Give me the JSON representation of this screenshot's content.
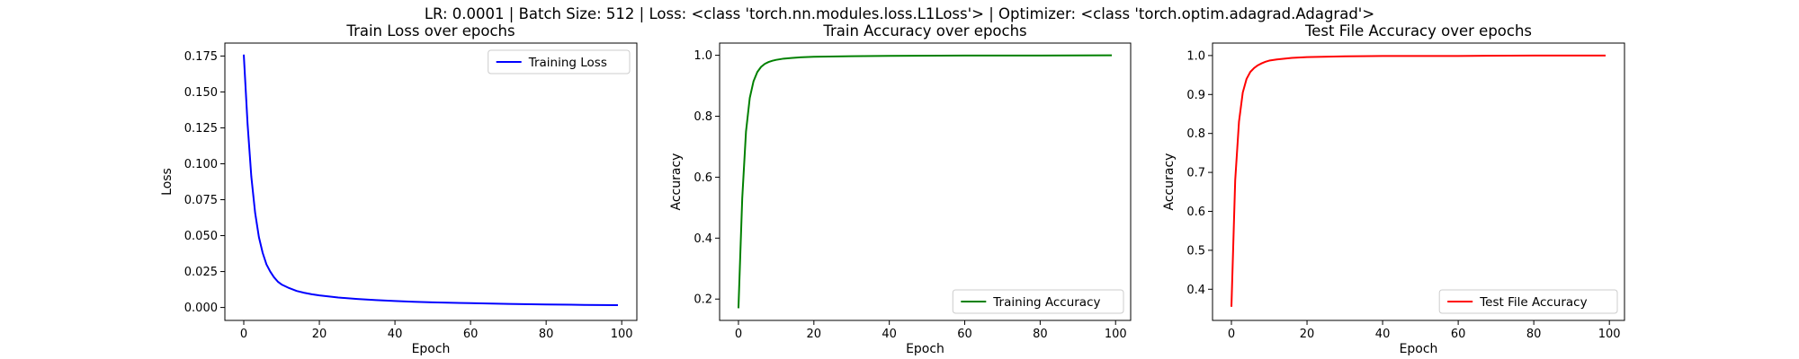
{
  "figure": {
    "suptitle": "LR: 0.0001 | Batch Size: 512 | Loss: <class 'torch.nn.modules.loss.L1Loss'> | Optimizer: <class 'torch.optim.adagrad.Adagrad'>"
  },
  "chart_data": [
    {
      "type": "line",
      "title": "Train Loss over epochs",
      "xlabel": "Epoch",
      "ylabel": "Loss",
      "xlim": [
        -5,
        104
      ],
      "ylim": [
        -0.009,
        0.184
      ],
      "xticks": [
        0,
        20,
        40,
        60,
        80,
        100
      ],
      "yticks": [
        0.0,
        0.025,
        0.05,
        0.075,
        0.1,
        0.125,
        0.15,
        0.175
      ],
      "ytick_labels": [
        "0.000",
        "0.025",
        "0.050",
        "0.075",
        "0.100",
        "0.125",
        "0.150",
        "0.175"
      ],
      "legend_position": "upper right",
      "series": [
        {
          "name": "Training Loss",
          "color": "#0000ff",
          "x": [
            0,
            1,
            2,
            3,
            4,
            5,
            6,
            7,
            8,
            9,
            10,
            12,
            14,
            16,
            18,
            20,
            25,
            30,
            35,
            40,
            45,
            50,
            60,
            70,
            80,
            90,
            99
          ],
          "y": [
            0.176,
            0.128,
            0.091,
            0.066,
            0.049,
            0.038,
            0.03,
            0.025,
            0.021,
            0.018,
            0.016,
            0.0135,
            0.0115,
            0.0102,
            0.0092,
            0.0084,
            0.0069,
            0.0059,
            0.0051,
            0.0045,
            0.004,
            0.0036,
            0.003,
            0.0025,
            0.0021,
            0.0018,
            0.0016
          ]
        }
      ]
    },
    {
      "type": "line",
      "title": "Train Accuracy over epochs",
      "xlabel": "Epoch",
      "ylabel": "Accuracy",
      "xlim": [
        -5,
        104
      ],
      "ylim": [
        0.13,
        1.04
      ],
      "xticks": [
        0,
        20,
        40,
        60,
        80,
        100
      ],
      "yticks": [
        0.2,
        0.4,
        0.6,
        0.8,
        1.0
      ],
      "ytick_labels": [
        "0.2",
        "0.4",
        "0.6",
        "0.8",
        "1.0"
      ],
      "legend_position": "lower right",
      "series": [
        {
          "name": "Training Accuracy",
          "color": "#008000",
          "x": [
            0,
            1,
            2,
            3,
            4,
            5,
            6,
            7,
            8,
            9,
            10,
            12,
            14,
            16,
            20,
            30,
            40,
            60,
            80,
            99
          ],
          "y": [
            0.17,
            0.53,
            0.75,
            0.86,
            0.915,
            0.945,
            0.962,
            0.972,
            0.978,
            0.982,
            0.985,
            0.989,
            0.991,
            0.993,
            0.995,
            0.997,
            0.998,
            0.999,
            0.999,
            1.0
          ]
        }
      ]
    },
    {
      "type": "line",
      "title": "Test File Accuracy over epochs",
      "xlabel": "Epoch",
      "ylabel": "Accuracy",
      "xlim": [
        -5,
        104
      ],
      "ylim": [
        0.32,
        1.032
      ],
      "xticks": [
        0,
        20,
        40,
        60,
        80,
        100
      ],
      "yticks": [
        0.4,
        0.5,
        0.6,
        0.7,
        0.8,
        0.9,
        1.0
      ],
      "ytick_labels": [
        "0.4",
        "0.5",
        "0.6",
        "0.7",
        "0.8",
        "0.9",
        "1.0"
      ],
      "legend_position": "lower right",
      "series": [
        {
          "name": "Test File Accuracy",
          "color": "#ff0000",
          "x": [
            0,
            1,
            2,
            3,
            4,
            5,
            6,
            7,
            8,
            9,
            10,
            12,
            14,
            16,
            20,
            30,
            40,
            60,
            80,
            99
          ],
          "y": [
            0.355,
            0.68,
            0.83,
            0.905,
            0.94,
            0.958,
            0.968,
            0.975,
            0.98,
            0.984,
            0.987,
            0.99,
            0.992,
            0.994,
            0.996,
            0.998,
            0.999,
            0.999,
            1.0,
            1.0
          ]
        }
      ]
    }
  ]
}
